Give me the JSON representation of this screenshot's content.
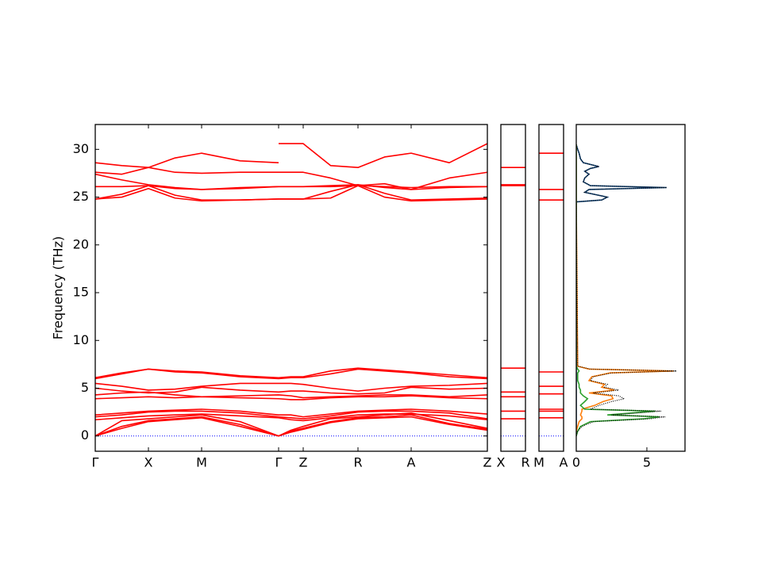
{
  "chart_data": [
    {
      "type": "band",
      "ylabel": "Frequency (THz)",
      "color": "#ff0000",
      "hline": 0,
      "hline_color": "#0000ff",
      "xlim": [
        0,
        4.94
      ],
      "ylim": [
        -1.6,
        32.6
      ],
      "yticks": [
        0,
        5,
        10,
        15,
        20,
        25,
        30
      ],
      "xticks": [
        {
          "value": 0,
          "label": "Γ"
        },
        {
          "value": 0.67,
          "label": "X"
        },
        {
          "value": 1.34,
          "label": "M"
        },
        {
          "value": 2.31,
          "label": "Γ"
        },
        {
          "value": 2.62,
          "label": "Z"
        },
        {
          "value": 3.31,
          "label": "R"
        },
        {
          "value": 3.98,
          "label": "A"
        },
        {
          "value": 4.94,
          "label": "Z"
        }
      ],
      "x": [
        0,
        0.335,
        0.67,
        1.005,
        1.34,
        1.825,
        2.31,
        2.465,
        2.62,
        2.965,
        3.31,
        3.645,
        3.98,
        4.46,
        4.94
      ],
      "series": [
        {
          "values": [
            28.6,
            28.3,
            28.1,
            29.1,
            29.6,
            28.8,
            28.6,
            null,
            null,
            null,
            null,
            null,
            null,
            null,
            null
          ]
        },
        {
          "values": [
            null,
            null,
            null,
            null,
            null,
            null,
            30.6,
            30.6,
            30.6,
            28.3,
            28.1,
            29.2,
            29.6,
            28.6,
            30.6
          ]
        },
        {
          "values": [
            27.6,
            27.4,
            28.1,
            27.6,
            27.5,
            27.6,
            27.6,
            27.6,
            27.6,
            27.0,
            26.2,
            26.4,
            25.8,
            27.0,
            27.6
          ]
        },
        {
          "values": [
            27.4,
            26.8,
            26.3,
            26.0,
            25.8,
            26.0,
            26.1,
            26.1,
            26.1,
            26.2,
            26.3,
            26.0,
            25.8,
            26.0,
            26.1
          ]
        },
        {
          "values": [
            26.1,
            26.1,
            26.2,
            25.9,
            25.8,
            25.9,
            26.1,
            26.1,
            26.1,
            26.1,
            26.2,
            26.1,
            26.0,
            26.1,
            26.1
          ]
        },
        {
          "values": [
            24.8,
            25.3,
            26.2,
            25.2,
            24.7,
            24.7,
            24.8,
            24.8,
            24.8,
            25.6,
            26.3,
            25.4,
            24.7,
            24.8,
            24.9
          ]
        },
        {
          "values": [
            24.8,
            25.0,
            25.9,
            24.9,
            24.6,
            24.7,
            24.8,
            24.8,
            24.8,
            24.9,
            26.2,
            25.0,
            24.6,
            24.7,
            24.8
          ]
        },
        {
          "values": [
            6.1,
            6.6,
            7.0,
            6.8,
            6.7,
            6.3,
            6.1,
            6.2,
            6.2,
            6.8,
            7.1,
            6.9,
            6.7,
            6.4,
            6.1
          ]
        },
        {
          "values": [
            6.0,
            6.5,
            7.0,
            6.7,
            6.6,
            6.2,
            6.0,
            6.1,
            6.1,
            6.5,
            7.0,
            6.8,
            6.6,
            6.2,
            6.0
          ]
        },
        {
          "values": [
            5.5,
            5.2,
            4.8,
            4.9,
            5.2,
            5.5,
            5.5,
            5.5,
            5.4,
            5.0,
            4.7,
            5.0,
            5.2,
            5.3,
            5.5
          ]
        },
        {
          "values": [
            5.0,
            4.7,
            4.5,
            4.6,
            5.1,
            4.8,
            4.6,
            4.7,
            4.7,
            4.5,
            4.4,
            4.5,
            5.1,
            4.9,
            5.0
          ]
        },
        {
          "values": [
            4.3,
            4.5,
            4.6,
            4.3,
            4.1,
            4.2,
            4.3,
            4.2,
            4.0,
            4.1,
            4.2,
            4.3,
            4.3,
            4.1,
            4.3
          ]
        },
        {
          "values": [
            3.9,
            4.0,
            4.1,
            4.0,
            4.1,
            4.0,
            3.9,
            3.8,
            3.8,
            4.0,
            4.1,
            4.1,
            4.2,
            4.0,
            3.9
          ]
        },
        {
          "values": [
            2.2,
            2.4,
            2.6,
            2.7,
            2.8,
            2.6,
            2.2,
            2.2,
            2.0,
            2.3,
            2.6,
            2.7,
            2.8,
            2.6,
            2.3
          ]
        },
        {
          "values": [
            2.0,
            2.2,
            2.5,
            2.6,
            2.6,
            2.4,
            2.0,
            1.9,
            1.8,
            2.1,
            2.5,
            2.6,
            2.6,
            2.4,
            1.8
          ]
        },
        {
          "values": [
            1.7,
            1.9,
            2.1,
            2.2,
            2.3,
            2.1,
            1.9,
            1.7,
            1.6,
            1.9,
            2.2,
            2.3,
            2.3,
            2.1,
            1.7
          ]
        },
        {
          "values": [
            0,
            1.6,
            1.8,
            2.0,
            2.2,
            1.5,
            0,
            0.6,
            1.0,
            1.8,
            2.0,
            2.2,
            2.4,
            1.6,
            0.8
          ]
        },
        {
          "values": [
            0,
            1.0,
            1.6,
            1.8,
            2.0,
            1.2,
            0,
            0.5,
            0.8,
            1.5,
            1.9,
            2.0,
            2.2,
            1.3,
            0.7
          ]
        },
        {
          "values": [
            0,
            0.8,
            1.5,
            1.7,
            1.9,
            1.0,
            0,
            0.4,
            0.7,
            1.4,
            1.8,
            1.9,
            2.0,
            1.2,
            0.6
          ]
        }
      ]
    },
    {
      "type": "band",
      "color": "#ff0000",
      "hline": 0,
      "hline_color": "#0000ff",
      "xlim": [
        0,
        1
      ],
      "ylim": [
        -1.6,
        32.6
      ],
      "xticks": [
        {
          "value": 0,
          "label": "X"
        },
        {
          "value": 1,
          "label": "R"
        }
      ],
      "x": [
        0,
        1
      ],
      "series": [
        {
          "values": [
            28.1,
            28.1
          ]
        },
        {
          "values": [
            26.3,
            26.3
          ]
        },
        {
          "values": [
            26.2,
            26.2
          ]
        },
        {
          "values": [
            7.1,
            7.1
          ]
        },
        {
          "values": [
            4.6,
            4.6
          ]
        },
        {
          "values": [
            4.1,
            4.1
          ]
        },
        {
          "values": [
            2.6,
            2.6
          ]
        },
        {
          "values": [
            1.8,
            1.8
          ]
        }
      ]
    },
    {
      "type": "band",
      "color": "#ff0000",
      "hline": 0,
      "hline_color": "#0000ff",
      "xlim": [
        0,
        1
      ],
      "ylim": [
        -1.6,
        32.6
      ],
      "xticks": [
        {
          "value": 0,
          "label": "M"
        },
        {
          "value": 1,
          "label": "A"
        }
      ],
      "x": [
        0,
        1
      ],
      "series": [
        {
          "values": [
            29.6,
            29.6
          ]
        },
        {
          "values": [
            25.8,
            25.8
          ]
        },
        {
          "values": [
            24.7,
            24.7
          ]
        },
        {
          "values": [
            6.7,
            6.7
          ]
        },
        {
          "values": [
            5.2,
            5.2
          ]
        },
        {
          "values": [
            4.4,
            4.4
          ]
        },
        {
          "values": [
            2.8,
            2.8
          ]
        },
        {
          "values": [
            2.6,
            2.6
          ]
        },
        {
          "values": [
            1.9,
            1.9
          ]
        }
      ]
    },
    {
      "type": "dos",
      "xlim": [
        0,
        7.7
      ],
      "ylim": [
        -1.6,
        32.6
      ],
      "xticks": [
        0,
        5
      ],
      "y": [
        0,
        0.5,
        1.0,
        1.5,
        1.8,
        2.0,
        2.2,
        2.6,
        2.8,
        3.2,
        3.6,
        3.9,
        4.2,
        4.5,
        4.8,
        5.1,
        5.4,
        5.8,
        6.2,
        6.6,
        6.8,
        7.0,
        7.3,
        24.5,
        24.7,
        25.0,
        25.5,
        25.8,
        26.0,
        26.2,
        26.6,
        27.0,
        27.4,
        27.7,
        28.0,
        28.2,
        28.6,
        29.0,
        29.6,
        30.0,
        30.5
      ],
      "series": [
        {
          "color": "#11457a",
          "values": [
            0,
            0,
            0,
            0,
            0,
            0,
            0,
            0,
            0,
            0,
            0,
            0,
            0,
            0,
            0,
            0,
            0,
            0,
            0,
            0,
            0,
            0,
            0,
            0,
            1.8,
            2.2,
            0.6,
            0.9,
            6.4,
            1.0,
            0.5,
            0.6,
            0.9,
            0.6,
            1.0,
            1.6,
            0.5,
            0.3,
            0.2,
            0.1,
            0
          ]
        },
        {
          "color": "#ff7f0e",
          "values": [
            0,
            0,
            0.1,
            0.2,
            0.4,
            0.4,
            0.3,
            0.4,
            0.4,
            1.3,
            1.9,
            2.6,
            2.5,
            0.9,
            2.7,
            1.8,
            2.0,
            0.9,
            1.1,
            2.4,
            6.9,
            0.9,
            0.1,
            0,
            0,
            0,
            0,
            0,
            0,
            0,
            0,
            0,
            0,
            0,
            0,
            0,
            0,
            0,
            0,
            0,
            0
          ]
        },
        {
          "color": "#2ca02c",
          "values": [
            0,
            0.1,
            0.3,
            1.0,
            4.8,
            5.9,
            2.2,
            5.6,
            0.6,
            0.3,
            0.6,
            0.8,
            0.5,
            0.3,
            0.3,
            0.2,
            0.2,
            0.1,
            0.1,
            0.1,
            0.2,
            0.1,
            0,
            0,
            0,
            0,
            0,
            0,
            0,
            0,
            0,
            0,
            0,
            0,
            0,
            0,
            0,
            0,
            0,
            0,
            0
          ]
        },
        {
          "color": "#000000",
          "dotted": true,
          "values": [
            0,
            0.1,
            0.4,
            1.2,
            5.2,
            6.3,
            2.5,
            6.0,
            1.0,
            1.6,
            2.5,
            3.4,
            3.0,
            1.2,
            3.0,
            2.0,
            2.2,
            1.0,
            1.2,
            2.5,
            7.1,
            1.0,
            0.1,
            0,
            1.8,
            2.2,
            0.6,
            0.9,
            6.4,
            1.0,
            0.5,
            0.6,
            0.9,
            0.6,
            1.0,
            1.6,
            0.5,
            0.3,
            0.2,
            0.1,
            0
          ]
        }
      ]
    }
  ]
}
